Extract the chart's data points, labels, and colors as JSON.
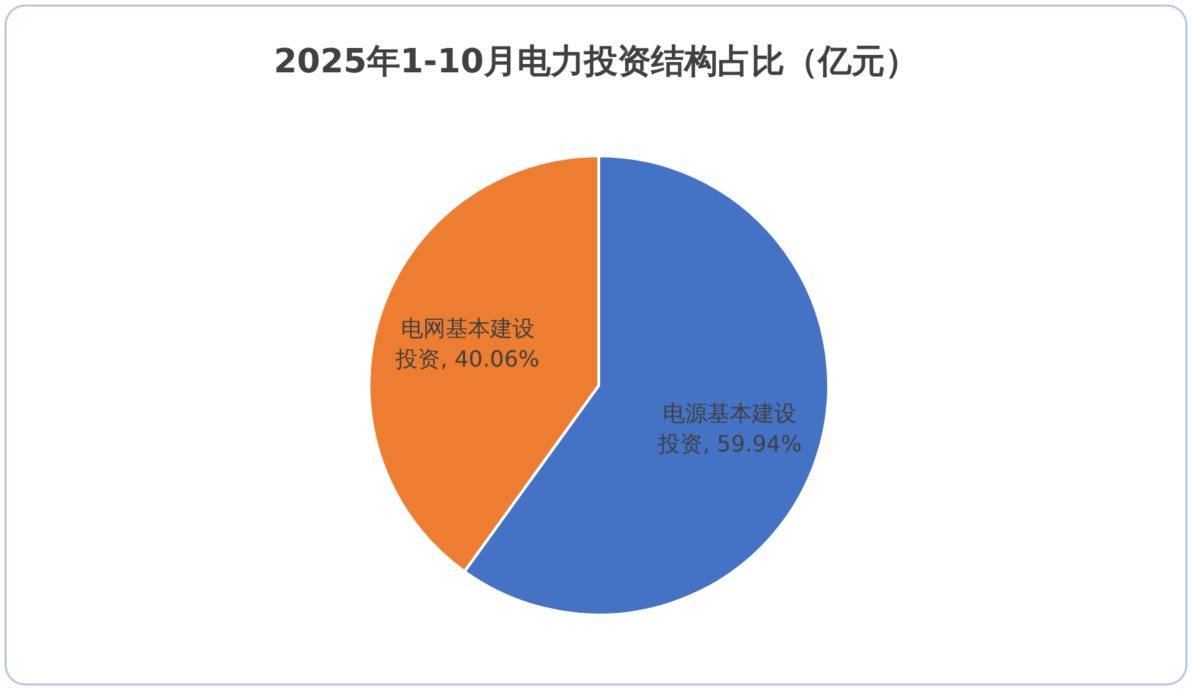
{
  "chart_data": {
    "type": "pie",
    "title": "2025年1-10月电力投资结构占比（亿元）",
    "categories": [
      "电源基本建设投资",
      "电网基本建设投资"
    ],
    "values": [
      59.94,
      40.06
    ],
    "colors": [
      "#4472c4",
      "#ed7d31"
    ],
    "value_labels": [
      ", 59.94%",
      ", 40.06%"
    ]
  }
}
